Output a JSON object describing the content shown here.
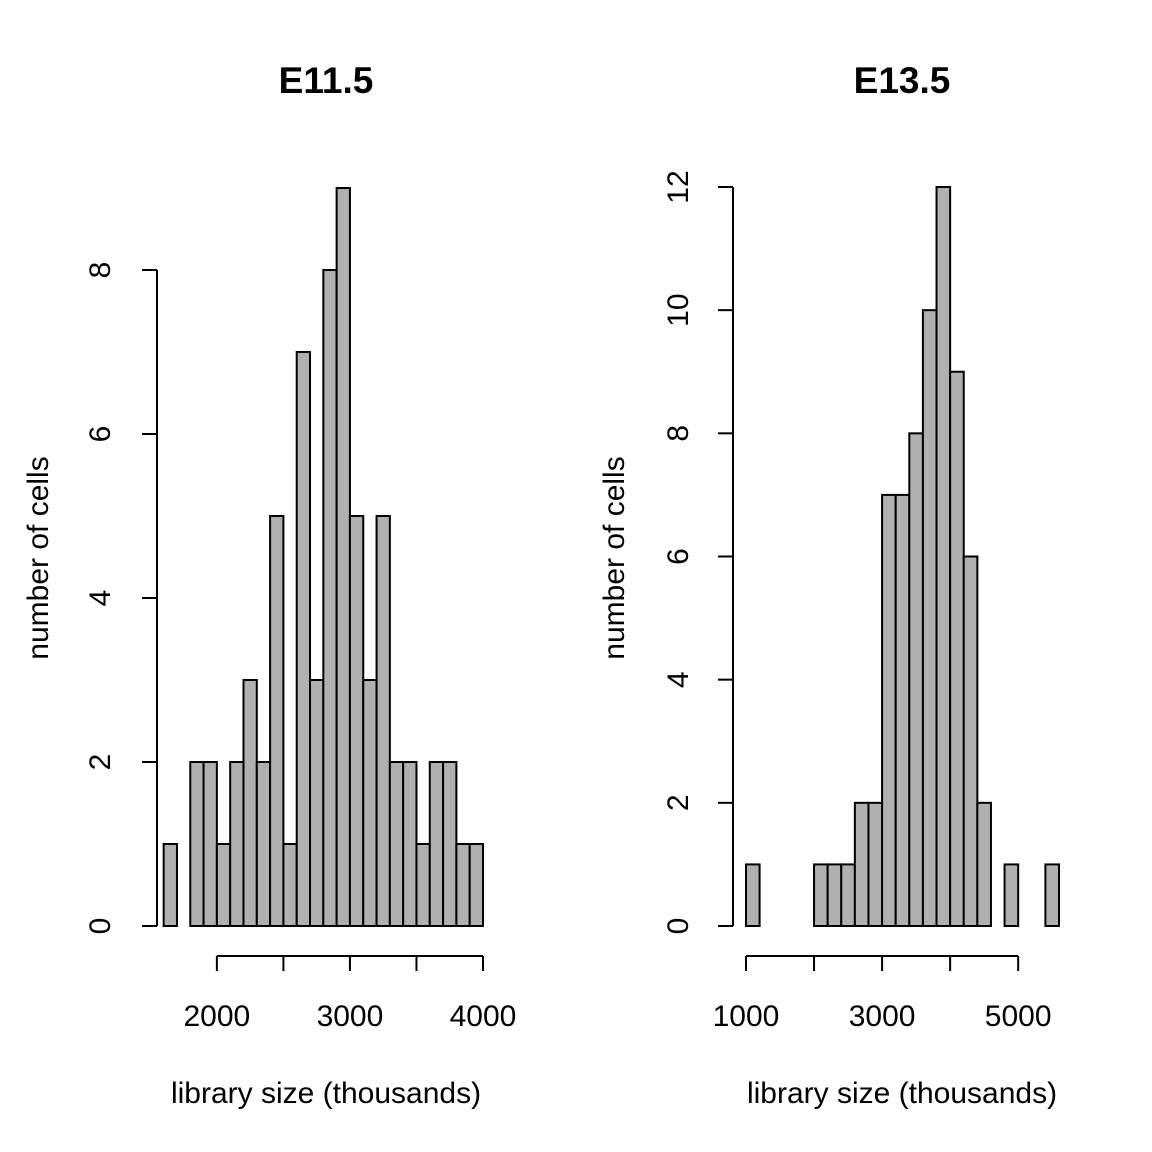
{
  "chart_data": [
    {
      "type": "bar",
      "title": "E11.5",
      "xlabel": "library size (thousands)",
      "ylabel": "number of cells",
      "bin_width": 100,
      "bin_starts": [
        1600,
        1700,
        1800,
        1900,
        2000,
        2100,
        2200,
        2300,
        2400,
        2500,
        2600,
        2700,
        2800,
        2900,
        3000,
        3100,
        3200,
        3300,
        3400,
        3500,
        3600,
        3700,
        3800,
        3900
      ],
      "values": [
        1,
        0,
        2,
        2,
        1,
        2,
        3,
        2,
        5,
        1,
        7,
        3,
        8,
        9,
        5,
        3,
        5,
        2,
        2,
        1,
        2,
        2,
        1,
        1
      ],
      "xlim": [
        1550,
        4000
      ],
      "ylim": [
        0,
        8
      ],
      "x_ticks": [
        2000,
        2500,
        3000,
        3500,
        4000
      ],
      "x_tick_labels": [
        "2000",
        "3000",
        "4000"
      ],
      "x_tick_label_values": [
        2000,
        3000,
        4000
      ],
      "y_ticks": [
        0,
        2,
        4,
        6,
        8
      ],
      "y_tick_labels": [
        "0",
        "2",
        "4",
        "6",
        "8"
      ],
      "grid": false
    },
    {
      "type": "bar",
      "title": "E13.5",
      "xlabel": "library size (thousands)",
      "ylabel": "number of cells",
      "bin_width": 200,
      "bin_starts": [
        1000,
        1200,
        1400,
        1600,
        1800,
        2000,
        2200,
        2400,
        2600,
        2800,
        3000,
        3200,
        3400,
        3600,
        3800,
        4000,
        4200,
        4400,
        4600,
        4800,
        5000,
        5200,
        5400
      ],
      "values": [
        1,
        0,
        0,
        0,
        0,
        1,
        1,
        1,
        2,
        2,
        7,
        7,
        8,
        10,
        12,
        9,
        6,
        2,
        0,
        1,
        0,
        0,
        1
      ],
      "xlim": [
        1000,
        5600
      ],
      "ylim": [
        0,
        12
      ],
      "x_ticks": [
        1000,
        2000,
        3000,
        4000,
        5000
      ],
      "x_tick_labels": [
        "1000",
        "3000",
        "5000"
      ],
      "x_tick_label_values": [
        1000,
        3000,
        5000
      ],
      "y_ticks": [
        0,
        2,
        4,
        6,
        8,
        10,
        12
      ],
      "y_tick_labels": [
        "0",
        "2",
        "4",
        "6",
        "8",
        "10",
        "12"
      ],
      "grid": false
    }
  ]
}
